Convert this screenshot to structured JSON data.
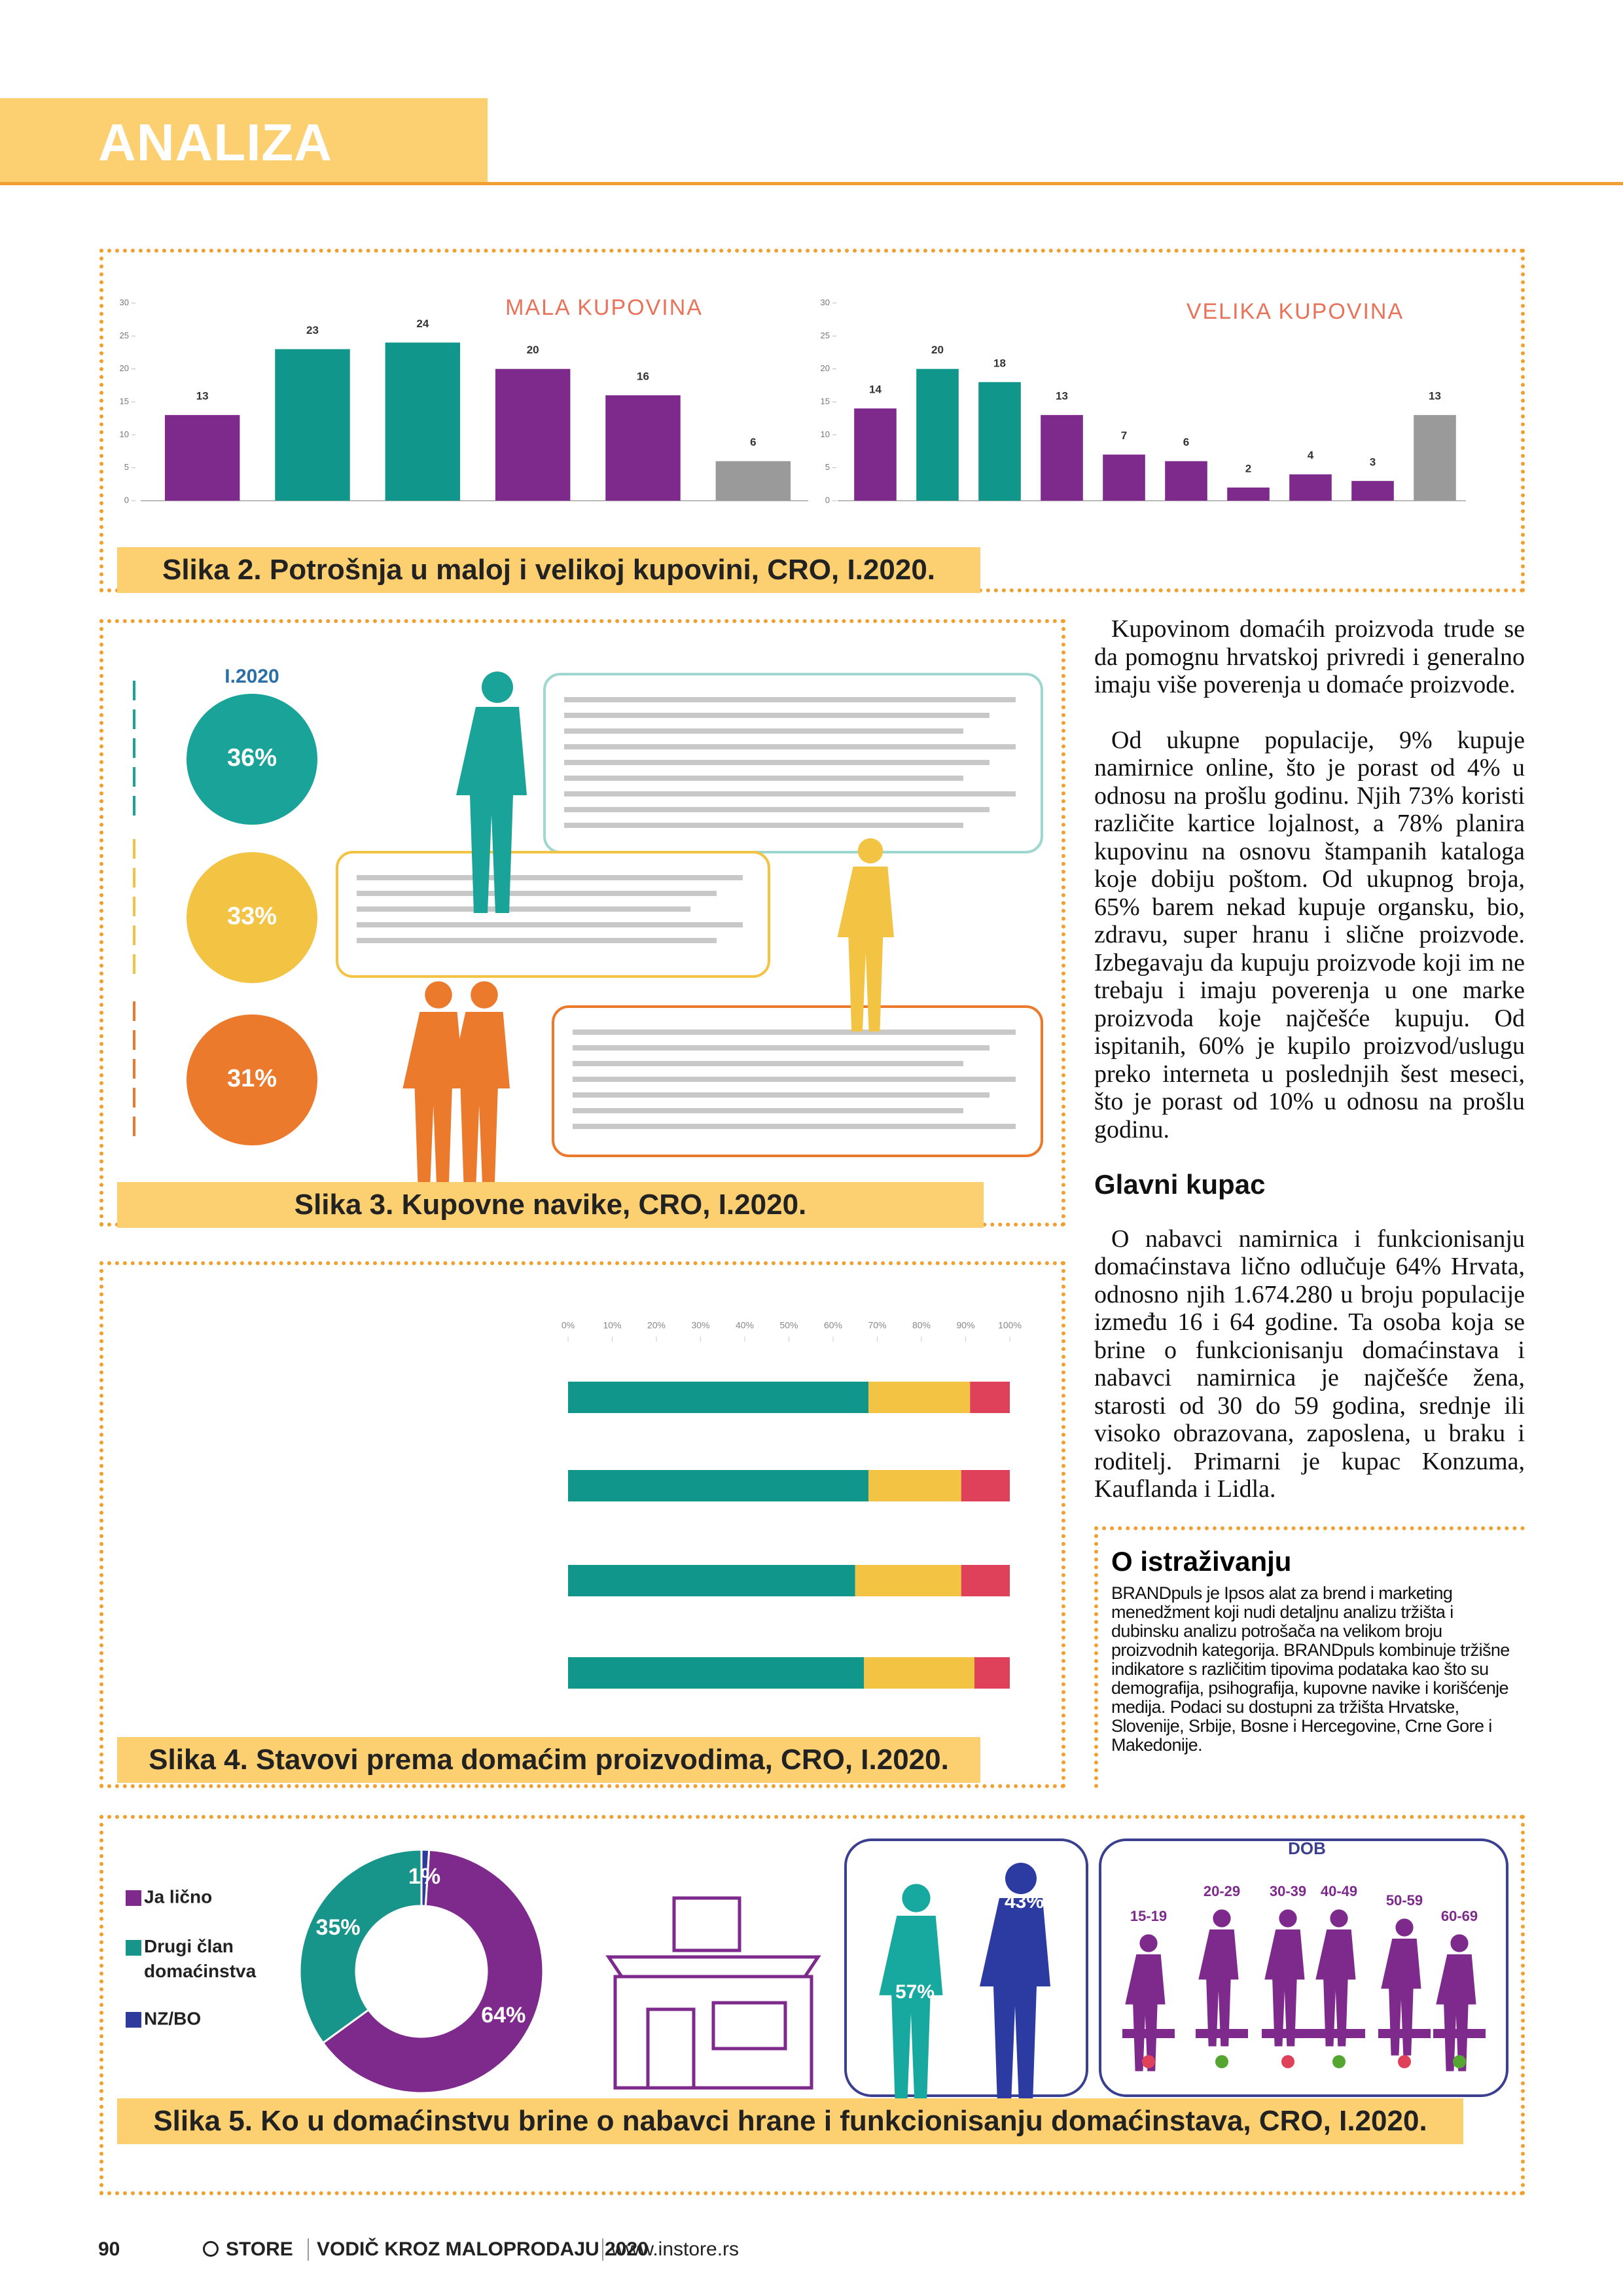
{
  "header": {
    "section": "ANALIZA"
  },
  "chart_data": [
    {
      "type": "bar",
      "title": "MALA KUPOVINA",
      "categories": [
        null,
        null,
        null,
        null,
        null,
        null
      ],
      "values": [
        13,
        23,
        24,
        20,
        16,
        6
      ],
      "colors": [
        "#7d2a8c",
        "#11968c",
        "#11968c",
        "#7d2a8c",
        "#7d2a8c",
        "#9a9a9a"
      ],
      "ylim": [
        0,
        30
      ],
      "yticks": [
        0,
        5,
        10,
        15,
        20,
        25,
        30
      ]
    },
    {
      "type": "bar",
      "title": "VELIKA KUPOVINA",
      "categories": [
        null,
        null,
        null,
        null,
        null,
        null,
        null,
        null,
        null,
        null
      ],
      "values": [
        14,
        20,
        18,
        13,
        7,
        6,
        2,
        4,
        3,
        13
      ],
      "colors": [
        "#7d2a8c",
        "#11968c",
        "#11968c",
        "#7d2a8c",
        "#7d2a8c",
        "#7d2a8c",
        "#7d2a8c",
        "#7d2a8c",
        "#7d2a8c",
        "#9a9a9a"
      ],
      "ylim": [
        0,
        30
      ],
      "yticks": [
        0,
        5,
        10,
        15,
        20,
        25,
        30
      ]
    },
    {
      "type": "hbar-stacked",
      "categories": [
        null,
        null,
        null,
        null
      ],
      "series": [
        {
          "color": "#11968c",
          "values": [
            68,
            68,
            65,
            67
          ]
        },
        {
          "color": "#f3c443",
          "values": [
            23,
            21,
            24,
            25
          ]
        },
        {
          "color": "#e0415a",
          "values": [
            9,
            11,
            11,
            8
          ]
        }
      ],
      "xlim": [
        0,
        100
      ],
      "xticks": [
        {
          "value": 0,
          "label": "0%"
        },
        {
          "value": 10,
          "label": "10%"
        },
        {
          "value": 20,
          "label": "20%"
        },
        {
          "value": 30,
          "label": "30%"
        },
        {
          "value": 40,
          "label": "40%"
        },
        {
          "value": 50,
          "label": "50%"
        },
        {
          "value": 60,
          "label": "60%"
        },
        {
          "value": 70,
          "label": "70%"
        },
        {
          "value": 80,
          "label": "80%"
        },
        {
          "value": 90,
          "label": "90%"
        },
        {
          "value": 100,
          "label": "100%"
        }
      ]
    },
    {
      "type": "pie",
      "categories": [
        "Ja lično",
        "Drugi član domaćinstva",
        "NZ/BO"
      ],
      "values": [
        64,
        35,
        1
      ],
      "value_labels": [
        "64%",
        "35%",
        "1%"
      ],
      "colors": [
        "#7d2a8c",
        "#17958a",
        "#2f3b9c"
      ]
    }
  ],
  "captions": [
    "Slika 2. Potrošnja u maloj i velikoj kupovini, CRO, I.2020.",
    "Slika 3. Kupovne navike, CRO, I.2020.",
    "Slika 4. Stavovi prema domaćim proizvodima, CRO, I.2020.",
    "Slika 5. Ko u domaćinstvu brine o nabavci hrane i funkcionisanju domaćinstava, CRO, I.2020."
  ],
  "habits": {
    "year": "I.2020",
    "shares": [
      "36%",
      "33%",
      "31%"
    ]
  },
  "gender": {
    "men": "43%",
    "women": "57%"
  },
  "age": {
    "title": "DOB",
    "groups": [
      "15-19",
      "20-29",
      "30-39",
      "40-49",
      "50-59",
      "60-69"
    ]
  },
  "article": {
    "paragraphs": [
      "Kupovinom domaćih proizvoda trude se da pomognu hrvatskoj privredi i generalno imaju više poverenja u domaće proizvode.",
      "Od ukupne populacije, 9% kupuje namirnice online, što je porast od 4% u odnosu na prošlu godinu. Njih 73% koristi različite kartice lojalnost, a 78% planira kupovinu na osnovu štampanih kataloga koje dobiju poštom. Od ukupnog broja, 65% barem nekad kupuje organsku, bio, zdravu, super hranu i slične proizvode. Izbegavaju da kupuju proizvode koji im ne trebaju i imaju poverenja u one marke proizvoda koje najčešće kupuju. Od ispitanih, 60% je kupilo proizvod/uslugu preko interneta u poslednjih šest meseci, što je porast od 10% u odnosu na prošlu godinu."
    ],
    "heading": "Glavni kupac",
    "paragraphs2": [
      "O nabavci namirnica i funkcionisanju domaćinstava lično odlučuje 64% Hrvata, odnosno njih 1.674.280 u broju populacije između 16 i 64 godine. Ta osoba koja se brine o funkcionisanju domaćinstava i nabavci namirnica je najčešće žena, starosti od 30 do 59 godina, srednje ili visoko obrazovana, zaposlena, u braku i roditelj. Primarni je kupac Konzuma, Kauflanda i Lidla."
    ]
  },
  "box": {
    "title": "O istraživanju",
    "text": "BRANDpuls je Ipsos alat za brend i marketing menedžment koji nudi detaljnu analizu tržišta i dubinsku analizu potrošača na velikom broju proizvodnih kategorija. BRANDpuls kombinuje tržišne indikatore s različitim tipovima podataka kao što su demografija, psihografija, kupovne navike i korišćenje medija. Podaci su dostupni za tržišta Hrvatske, Slovenije, Srbije, Bosne i Hercegovine, Crne Gore i Makedonije."
  },
  "footer": {
    "page": "90",
    "brand": "STORE",
    "publication": "VODIČ KROZ MALOPRODAJU 2020",
    "url": "www.instore.rs"
  }
}
